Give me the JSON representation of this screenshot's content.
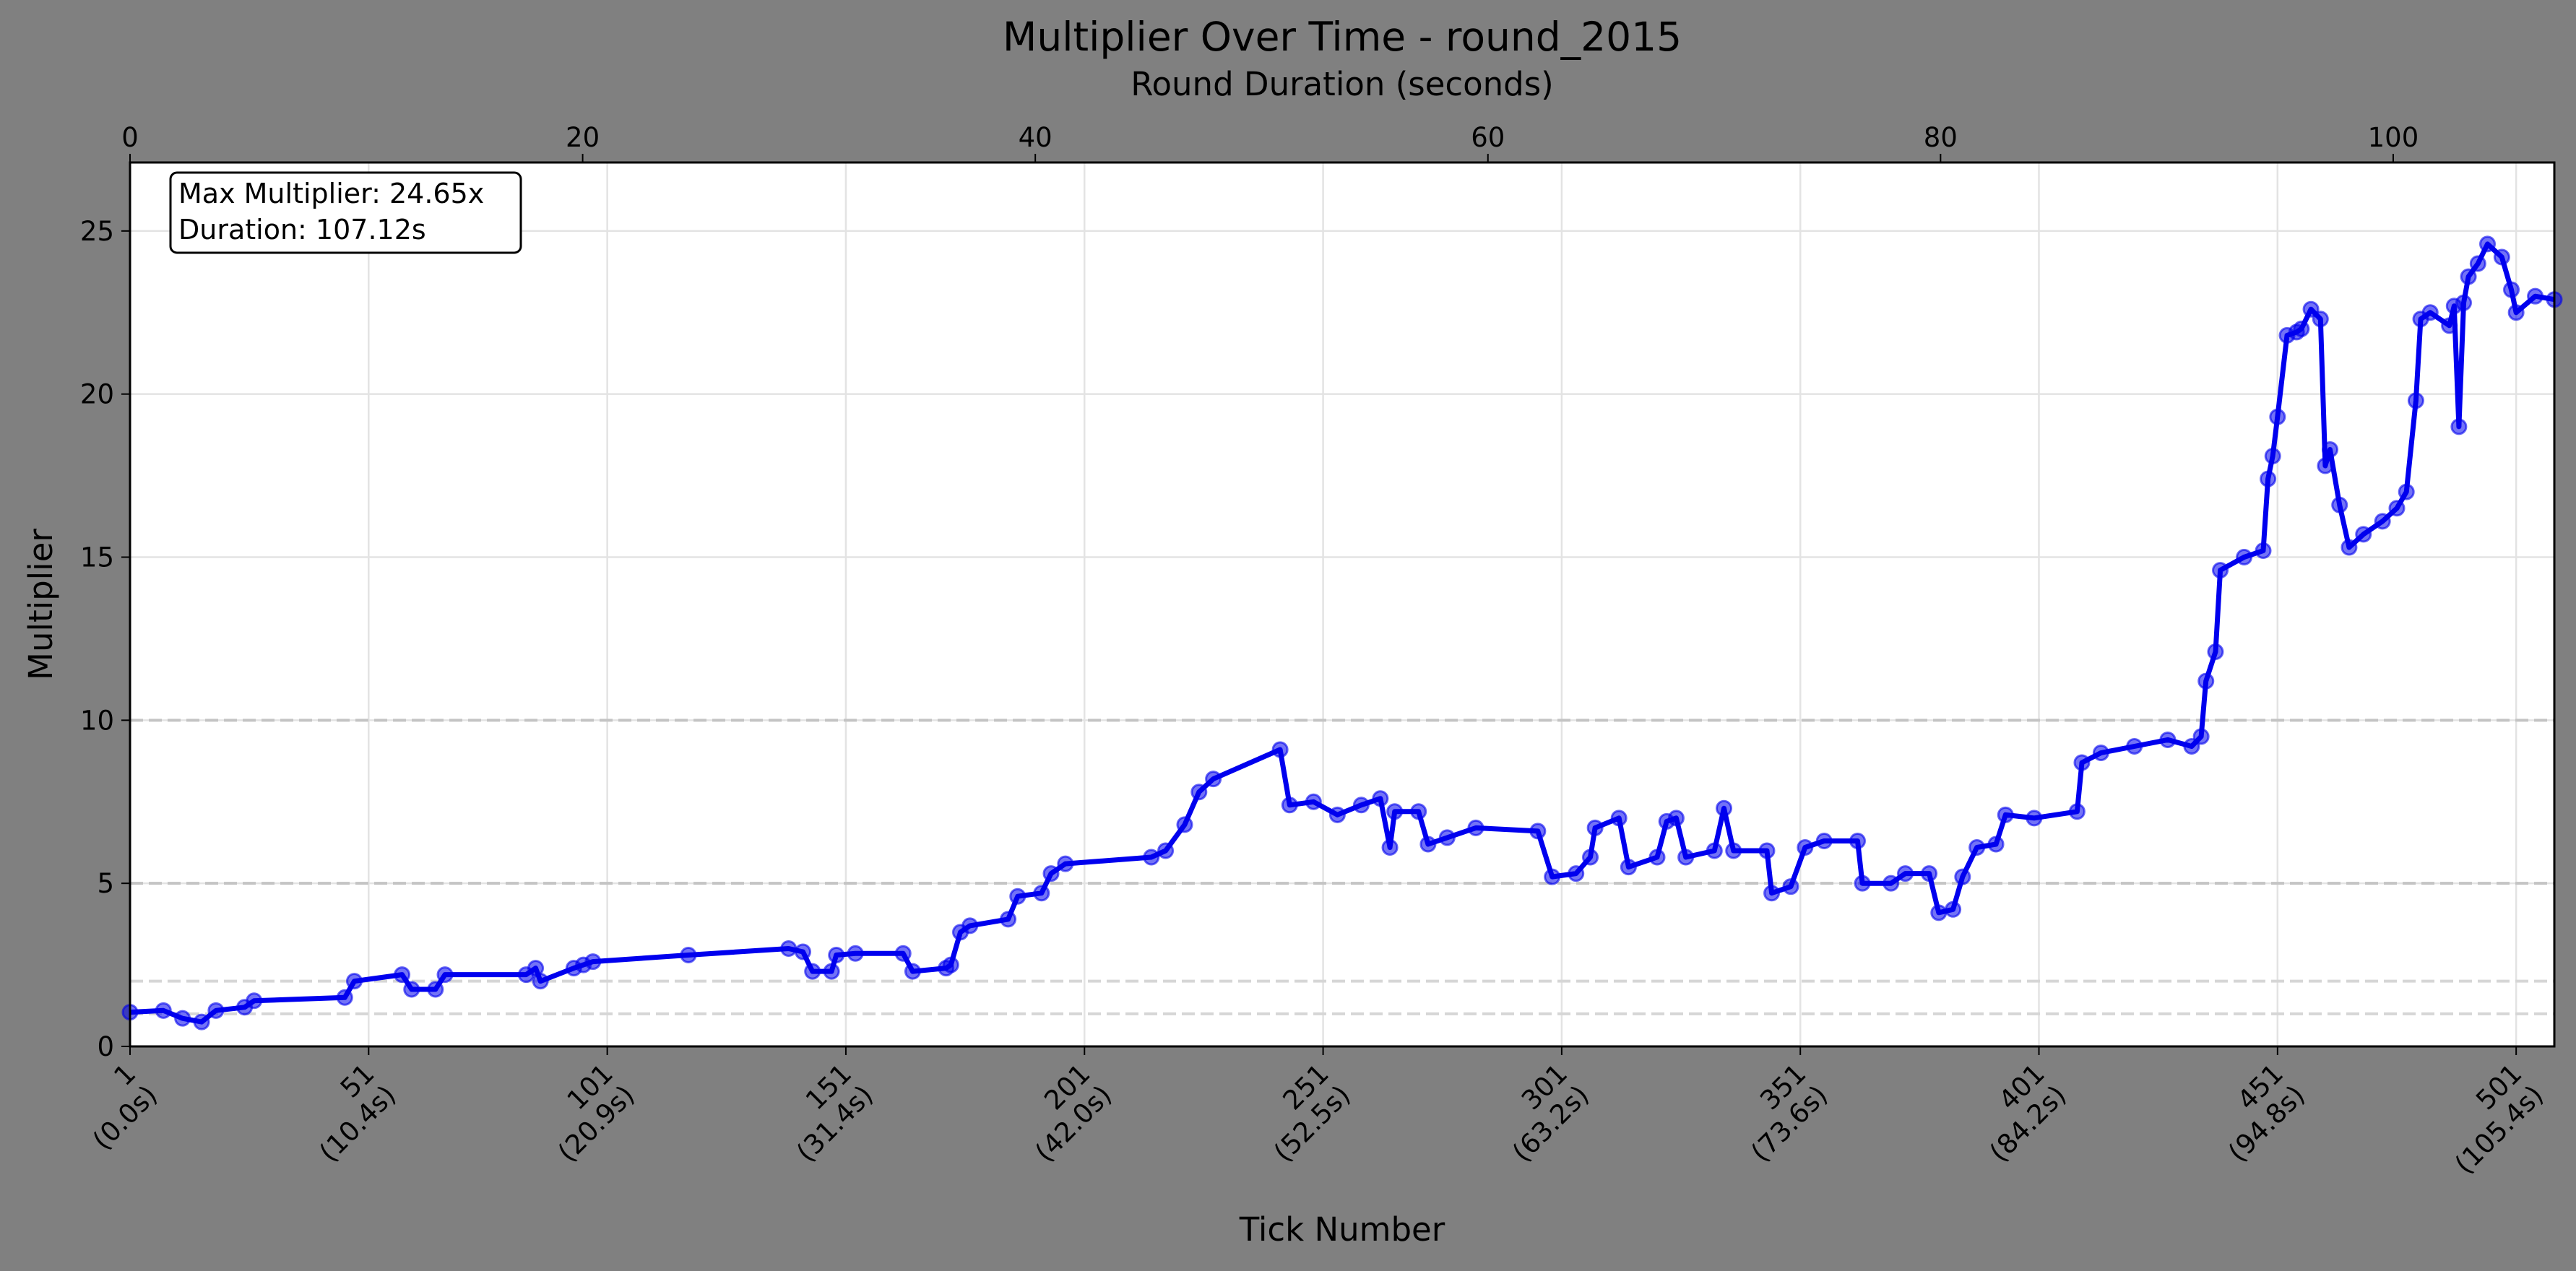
{
  "chart_data": {
    "type": "line",
    "title": "Multiplier Over Time - round_2015",
    "x_label": "Tick Number",
    "y_label": "Multiplier",
    "x2_label": "Round Duration (seconds)",
    "annotations": [
      "Max Multiplier: 24.65x",
      "Duration: 107.12s"
    ],
    "xlim": [
      1,
      509
    ],
    "ylim": [
      0,
      27.1
    ],
    "x2lim": [
      0,
      107.12
    ],
    "xticks": [
      {
        "value": 1,
        "label": "1\n(0.0s)"
      },
      {
        "value": 51,
        "label": "51\n(10.4s)"
      },
      {
        "value": 101,
        "label": "101\n(20.9s)"
      },
      {
        "value": 151,
        "label": "151\n(31.4s)"
      },
      {
        "value": 201,
        "label": "201\n(42.0s)"
      },
      {
        "value": 251,
        "label": "251\n(52.5s)"
      },
      {
        "value": 301,
        "label": "301\n(63.2s)"
      },
      {
        "value": 351,
        "label": "351\n(73.6s)"
      },
      {
        "value": 401,
        "label": "401\n(84.2s)"
      },
      {
        "value": 451,
        "label": "451\n(94.8s)"
      },
      {
        "value": 501,
        "label": "501\n(105.4s)"
      }
    ],
    "yticks": [
      0,
      5,
      10,
      15,
      20,
      25
    ],
    "x2ticks": [
      0,
      20,
      40,
      60,
      80,
      100
    ],
    "reference_lines": [
      1,
      2,
      5,
      10
    ],
    "grid": true,
    "x": [
      1,
      8,
      12,
      16,
      19,
      25,
      27,
      46,
      48,
      58,
      60,
      65,
      67,
      84,
      86,
      87,
      94,
      96,
      98,
      118,
      139,
      142,
      144,
      148,
      149,
      153,
      163,
      165,
      172,
      173,
      175,
      177,
      185,
      187,
      192,
      194,
      197,
      215,
      218,
      222,
      225,
      228,
      242,
      244,
      249,
      254,
      259,
      263,
      265,
      266,
      271,
      273,
      277,
      283,
      296,
      299,
      304,
      307,
      308,
      313,
      315,
      321,
      323,
      325,
      327,
      333,
      335,
      337,
      344,
      345,
      349,
      352,
      356,
      363,
      364,
      370,
      373,
      378,
      380,
      383,
      385,
      388,
      392,
      394,
      400,
      409,
      410,
      414,
      421,
      428,
      433,
      435,
      436,
      438,
      439,
      444,
      448,
      449,
      450,
      451,
      453,
      455,
      456,
      458,
      460,
      461,
      462,
      464,
      466,
      469,
      473,
      476,
      478,
      480,
      481,
      483,
      487,
      488,
      489,
      490,
      491,
      493,
      495,
      498,
      500,
      501,
      505,
      509
    ],
    "series": [
      {
        "name": "Multiplier",
        "color": "#0000ee",
        "values": [
          1.05,
          1.1,
          0.86,
          0.75,
          1.1,
          1.2,
          1.4,
          1.5,
          2.0,
          2.2,
          1.75,
          1.75,
          2.2,
          2.2,
          2.4,
          2.0,
          2.4,
          2.5,
          2.6,
          2.8,
          3.0,
          2.9,
          2.3,
          2.3,
          2.8,
          2.85,
          2.85,
          2.3,
          2.4,
          2.5,
          3.5,
          3.7,
          3.9,
          4.6,
          4.7,
          5.3,
          5.6,
          5.8,
          6.0,
          6.8,
          7.8,
          8.2,
          9.1,
          7.4,
          7.5,
          7.1,
          7.4,
          7.6,
          6.1,
          7.2,
          7.2,
          6.2,
          6.4,
          6.7,
          6.6,
          5.2,
          5.3,
          5.8,
          6.7,
          7.0,
          5.5,
          5.8,
          6.9,
          7.0,
          5.8,
          6.0,
          7.3,
          6.0,
          6.0,
          4.7,
          4.9,
          6.1,
          6.3,
          6.3,
          5.0,
          5.0,
          5.3,
          5.3,
          4.1,
          4.2,
          5.2,
          6.1,
          6.2,
          7.1,
          7.0,
          7.2,
          8.7,
          9.0,
          9.2,
          9.4,
          9.2,
          9.5,
          11.2,
          12.1,
          14.6,
          15.0,
          15.2,
          17.4,
          18.1,
          19.3,
          21.8,
          21.9,
          22.0,
          22.6,
          22.3,
          17.8,
          18.3,
          16.6,
          15.3,
          15.7,
          16.1,
          16.5,
          17.0,
          19.8,
          22.3,
          22.5,
          22.1,
          22.7,
          19.0,
          22.8,
          23.6,
          24.0,
          24.6,
          24.2,
          23.2,
          22.5,
          23.0,
          22.9
        ]
      }
    ]
  }
}
